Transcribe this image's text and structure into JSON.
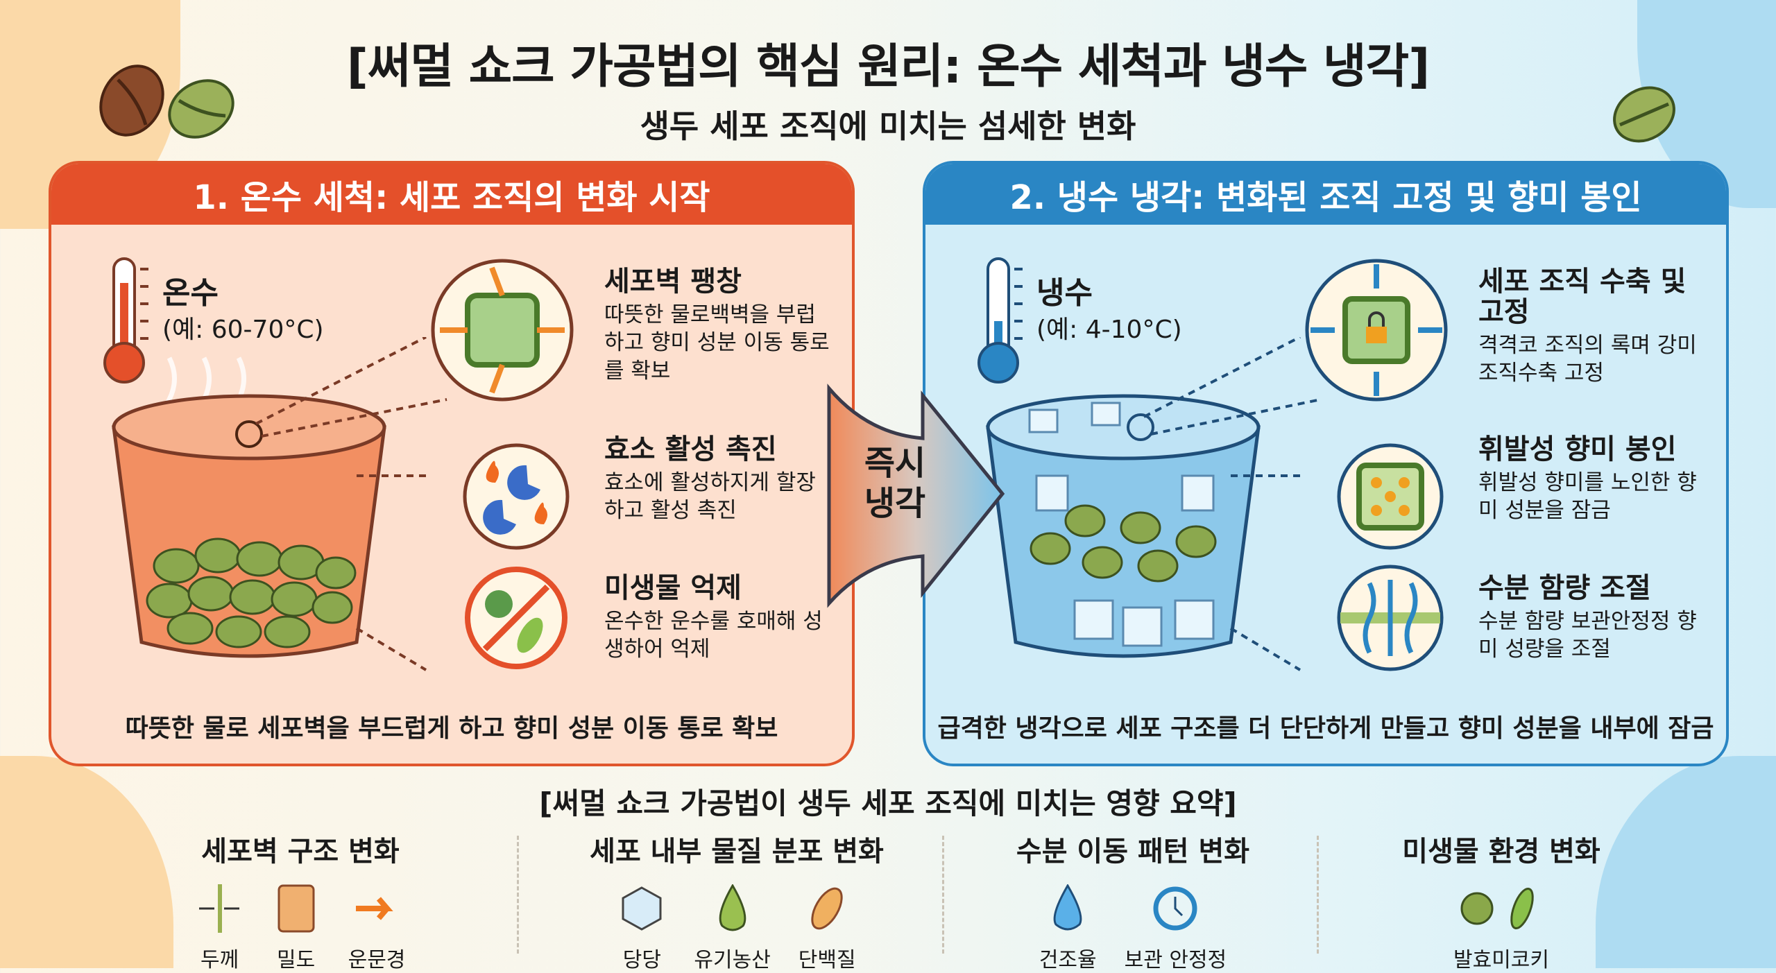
{
  "title": "[써멀 쇼크 가공법의 핵심 원리: 온수 세척과 냉수 냉각]",
  "subtitle": "생두 세포 조직에 미치는 섬세한 변화",
  "colors": {
    "hot": "#e4502a",
    "cold": "#2a86c4",
    "hot_bg": "#fde0cf",
    "cold_bg": "#d2edf8"
  },
  "hot": {
    "header": "1. 온수 세척: 세포 조직의 변화 시작",
    "temp_name": "온수",
    "temp_range": "(예: 60-70°C)",
    "features": [
      {
        "title": "세포벽 팽창",
        "desc": "따뜻한 물로백벽을 부럽하고 향미 성분 이동 통로를 확보",
        "icon": "cell-expand-icon"
      },
      {
        "title": "효소 활성 촉진",
        "desc": "효소에 활성하지게 할장하고 활성 촉진",
        "icon": "enzyme-icon"
      },
      {
        "title": "미생물 억제",
        "desc": "온수한 운수룰 호매해 성생하어 억제",
        "icon": "no-microbe-icon"
      }
    ],
    "footer": "따뜻한 물로 세포벽을 부드럽게 하고 향미 성분 이동 통로 확보"
  },
  "arrow": {
    "line1": "즉시",
    "line2": "냉각"
  },
  "cold": {
    "header": "2. 냉수 냉각: 변화된 조직 고정 및 향미 봉인",
    "temp_name": "냉수",
    "temp_range": "(예: 4-10°C)",
    "features": [
      {
        "title": "세포 조직 수축 및 고정",
        "desc": "격격코 조직의 록며 강미 조직수축 고정",
        "icon": "cell-lock-icon"
      },
      {
        "title": "휘발성 향미 봉인",
        "desc": "휘발성 향미를 노인한 향미 성분을 잠금",
        "icon": "aroma-seal-icon"
      },
      {
        "title": "수분 함량 조절",
        "desc": "수분 함량 보관안정정 향미 성량을 조절",
        "icon": "moisture-flow-icon"
      }
    ],
    "footer": "급격한 냉각으로 세포 구조를 더 단단하게 만들고 향미 성분을 내부에 잠금"
  },
  "summary": {
    "title": "[써멀 쇼크 가공법이 생두 세포 조직에 미치는 영향 요약]",
    "columns": [
      {
        "title": "세포벽 구조 변화",
        "items": [
          "두께",
          "밀도",
          "운문경"
        ]
      },
      {
        "title": "세포 내부 물질 분포 변화",
        "items": [
          "당당",
          "유기농산",
          "단백질"
        ]
      },
      {
        "title": "수분 이동 패턴 변화",
        "items": [
          "건조율",
          "보관 안정정"
        ]
      },
      {
        "title": "미생물 환경 변화",
        "items": [
          "발효미코키"
        ]
      }
    ]
  }
}
